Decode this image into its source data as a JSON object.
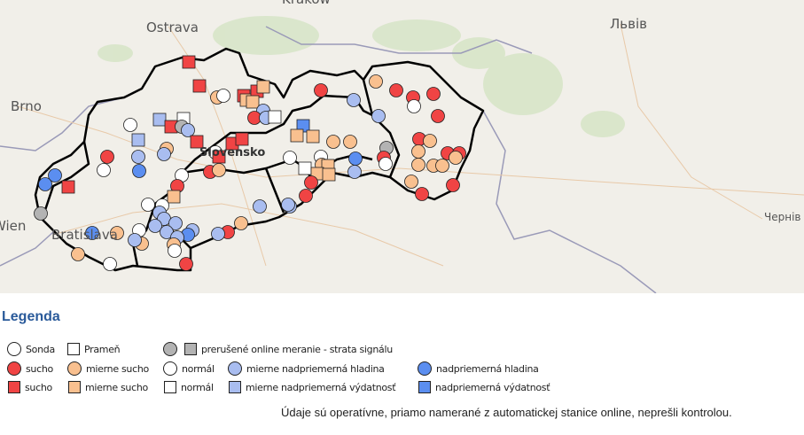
{
  "map": {
    "labels": {
      "krakow": "Kraków",
      "ostrava": "Ostrava",
      "lviv": "Львів",
      "brno": "Brno",
      "wien": "Wien",
      "bratislava": "Bratislava",
      "slovensko": "Slovensko",
      "chernivtsi": "Чернів"
    }
  },
  "colors": {
    "sucho": "#f04444",
    "mierne_sucho": "#f9c08f",
    "normal": "#ffffff",
    "mierne_nadpriemerna": "#a9bdf0",
    "nadpriemerna": "#5b8ef0",
    "prerusene": "#b3b3b3"
  },
  "legend": {
    "title": "Legenda",
    "sonda": "Sonda",
    "pramen": "Prameň",
    "prerusene": "prerušené online meranie - strata signálu",
    "sucho_hladina": "sucho",
    "mierne_sucho_hladina": "mierne sucho",
    "normal_hladina": "normál",
    "mierne_nadpriemerna_hladina": "mierne nadpriemerná hladina",
    "nadpriemerna_hladina": "nadpriemerná hladina",
    "sucho_vydatnost": "sucho",
    "mierne_sucho_vydatnost": "mierne sucho",
    "normal_vydatnost": "normál",
    "mierne_nadpriemerna_vydatnost": "mierne nadpriemerná výdatnosť",
    "nadpriemerna_vydatnost": "nadpriemerná výdatnosť"
  },
  "note": "Údaje sú operatívne, priamo namerané z automatickej stanice online, neprešli kontrolou."
}
